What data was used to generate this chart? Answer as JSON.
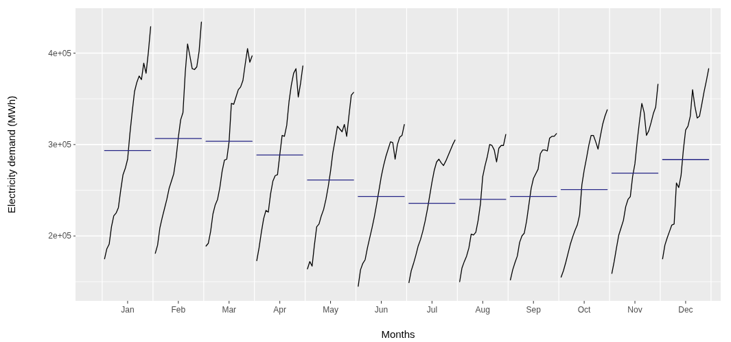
{
  "chart_data": {
    "type": "line",
    "xlabel": "Months",
    "ylabel": "Electricity demand (MWh)",
    "ylim": [
      129000,
      449100
    ],
    "categories": [
      null,
      null,
      null,
      null,
      null,
      null,
      null,
      null,
      null,
      null,
      "Jan",
      null,
      null,
      null,
      null,
      null,
      null,
      null,
      null,
      null,
      null,
      null,
      null,
      null,
      null,
      null,
      null,
      null,
      null,
      null,
      null,
      null,
      "Feb",
      null,
      null,
      null,
      null,
      null,
      null,
      null,
      null,
      null,
      null,
      null,
      null,
      null,
      null,
      null,
      null,
      null,
      null,
      null,
      null,
      null,
      "Mar",
      null,
      null,
      null,
      null,
      null,
      null,
      null,
      null,
      null,
      null,
      null,
      null,
      null,
      null,
      null,
      null,
      null,
      null,
      null,
      null,
      null,
      "Apr",
      null,
      null,
      null,
      null,
      null,
      null,
      null,
      null,
      null,
      null,
      null,
      null,
      null,
      null,
      null,
      null,
      null,
      null,
      null,
      null,
      null,
      "May",
      null,
      null,
      null,
      null,
      null,
      null,
      null,
      null,
      null,
      null,
      null,
      null,
      null,
      null,
      null,
      null,
      null,
      null,
      null,
      null,
      null,
      "Jun",
      null,
      null,
      null,
      null,
      null,
      null,
      null,
      null,
      null,
      null,
      null,
      null,
      null,
      null,
      null,
      null,
      null,
      null,
      null,
      null,
      null,
      "Jul",
      null,
      null,
      null,
      null,
      null,
      null,
      null,
      null,
      null,
      null,
      null,
      null,
      null,
      null,
      null,
      null,
      null,
      null,
      null,
      null,
      null,
      "Aug",
      null,
      null,
      null,
      null,
      null,
      null,
      null,
      null,
      null,
      null,
      null,
      null,
      null,
      null,
      null,
      null,
      null,
      null,
      null,
      null,
      null,
      "Sep",
      null,
      null,
      null,
      null,
      null,
      null,
      null,
      null,
      null,
      null,
      null,
      null,
      null,
      null,
      null,
      null,
      null,
      null,
      null,
      null,
      null,
      "Oct",
      null,
      null,
      null,
      null,
      null,
      null,
      null,
      null,
      null,
      null,
      null,
      null,
      null,
      null,
      null,
      null,
      null,
      null,
      null,
      null,
      null,
      "Nov",
      null,
      null,
      null,
      null,
      null,
      null,
      null,
      null,
      null,
      null,
      null,
      null,
      null,
      null,
      null,
      null,
      null,
      null,
      null,
      null,
      null,
      "Dec",
      null,
      null,
      null,
      null,
      null,
      null,
      null,
      null,
      null,
      null,
      null
    ],
    "yticks": [
      {
        "value": 200000,
        "label": "2e+05"
      },
      {
        "value": 300000,
        "label": "3e+05"
      },
      {
        "value": 400000,
        "label": "4e+05"
      }
    ],
    "grid": true,
    "series": [
      {
        "color": "#000000",
        "values": [
          175000,
          186000,
          191000,
          210000,
          222000,
          225000,
          231000,
          250000,
          267000,
          274000,
          284000,
          312000,
          336000,
          358000,
          368000,
          375000,
          371000,
          389000,
          378000,
          401000,
          429000,
          null,
          181000,
          190000,
          209000,
          220000,
          230000,
          240000,
          252000,
          260000,
          268000,
          285000,
          308000,
          327000,
          335000,
          379000,
          410000,
          397000,
          383000,
          382000,
          385000,
          402000,
          434000,
          null,
          189000,
          192000,
          205000,
          224000,
          234000,
          240000,
          253000,
          271000,
          283000,
          284000,
          303000,
          345000,
          344000,
          352000,
          360000,
          363000,
          370000,
          388000,
          405000,
          390000,
          397000,
          null,
          173000,
          187000,
          204000,
          219000,
          228000,
          226000,
          246000,
          260000,
          266000,
          267000,
          289000,
          310000,
          309000,
          321000,
          347000,
          365000,
          378000,
          383000,
          352000,
          367000,
          386000,
          null,
          164000,
          172000,
          167000,
          190000,
          210000,
          213000,
          222000,
          229000,
          240000,
          254000,
          271000,
          291000,
          305000,
          320000,
          317000,
          314000,
          322000,
          309000,
          332000,
          354000,
          357000,
          null,
          145000,
          163000,
          170000,
          174000,
          187000,
          198000,
          209000,
          221000,
          235000,
          250000,
          265000,
          277000,
          287000,
          295000,
          303000,
          302000,
          284000,
          300000,
          308000,
          310000,
          322000,
          null,
          149000,
          162000,
          170000,
          179000,
          189000,
          196000,
          205000,
          216000,
          229000,
          244000,
          259000,
          272000,
          281000,
          284000,
          280000,
          277000,
          282000,
          288000,
          294000,
          300000,
          305000,
          null,
          150000,
          165000,
          172000,
          178000,
          187000,
          202000,
          201000,
          204000,
          217000,
          235000,
          265000,
          277000,
          287000,
          300000,
          299000,
          294000,
          281000,
          296000,
          299000,
          299000,
          311000,
          null,
          152000,
          163000,
          171000,
          178000,
          193000,
          200000,
          203000,
          216000,
          234000,
          252000,
          263000,
          268000,
          273000,
          290000,
          294000,
          294000,
          293000,
          307000,
          309000,
          309000,
          312000,
          null,
          155000,
          162000,
          171000,
          181000,
          191000,
          199000,
          206000,
          212000,
          223000,
          256000,
          272000,
          285000,
          299000,
          310000,
          310000,
          303000,
          295000,
          309000,
          322000,
          331000,
          338000,
          null,
          159000,
          172000,
          187000,
          201000,
          209000,
          217000,
          232000,
          240000,
          243000,
          265000,
          279000,
          304000,
          326000,
          345000,
          335000,
          310000,
          315000,
          324000,
          334000,
          341000,
          366000,
          null,
          175000,
          190000,
          198000,
          205000,
          212000,
          213000,
          258000,
          253000,
          266000,
          294000,
          316000,
          320000,
          331000,
          360000,
          342000,
          329000,
          331000,
          344000,
          358000,
          370000,
          383000,
          null
        ]
      },
      {
        "color": "#262686",
        "values": [
          293500,
          293500,
          293500,
          293500,
          293500,
          293500,
          293500,
          293500,
          293500,
          293500,
          293500,
          293500,
          293500,
          293500,
          293500,
          293500,
          293500,
          293500,
          293500,
          293500,
          293500,
          null,
          306500,
          306500,
          306500,
          306500,
          306500,
          306500,
          306500,
          306500,
          306500,
          306500,
          306500,
          306500,
          306500,
          306500,
          306500,
          306500,
          306500,
          306500,
          306500,
          306500,
          306500,
          null,
          303500,
          303500,
          303500,
          303500,
          303500,
          303500,
          303500,
          303500,
          303500,
          303500,
          303500,
          303500,
          303500,
          303500,
          303500,
          303500,
          303500,
          303500,
          303500,
          303500,
          303500,
          null,
          288600,
          288600,
          288600,
          288600,
          288600,
          288600,
          288600,
          288600,
          288600,
          288600,
          288600,
          288600,
          288600,
          288600,
          288600,
          288600,
          288600,
          288600,
          288600,
          288600,
          288600,
          null,
          261200,
          261200,
          261200,
          261200,
          261200,
          261200,
          261200,
          261200,
          261200,
          261200,
          261200,
          261200,
          261200,
          261200,
          261200,
          261200,
          261200,
          261200,
          261200,
          261200,
          261200,
          null,
          243200,
          243200,
          243200,
          243200,
          243200,
          243200,
          243200,
          243200,
          243200,
          243200,
          243200,
          243200,
          243200,
          243200,
          243200,
          243200,
          243200,
          243200,
          243200,
          243200,
          243200,
          null,
          235700,
          235700,
          235700,
          235700,
          235700,
          235700,
          235700,
          235700,
          235700,
          235700,
          235700,
          235700,
          235700,
          235700,
          235700,
          235700,
          235700,
          235700,
          235700,
          235700,
          235700,
          null,
          240000,
          240000,
          240000,
          240000,
          240000,
          240000,
          240000,
          240000,
          240000,
          240000,
          240000,
          240000,
          240000,
          240000,
          240000,
          240000,
          240000,
          240000,
          240000,
          240000,
          240000,
          null,
          243200,
          243200,
          243200,
          243200,
          243200,
          243200,
          243200,
          243200,
          243200,
          243200,
          243200,
          243200,
          243200,
          243200,
          243200,
          243200,
          243200,
          243200,
          243200,
          243200,
          243200,
          null,
          250700,
          250700,
          250700,
          250700,
          250700,
          250700,
          250700,
          250700,
          250700,
          250700,
          250700,
          250700,
          250700,
          250700,
          250700,
          250700,
          250700,
          250700,
          250700,
          250700,
          250700,
          null,
          268700,
          268700,
          268700,
          268700,
          268700,
          268700,
          268700,
          268700,
          268700,
          268700,
          268700,
          268700,
          268700,
          268700,
          268700,
          268700,
          268700,
          268700,
          268700,
          268700,
          268700,
          null,
          283600,
          283600,
          283600,
          283600,
          283600,
          283600,
          283600,
          283600,
          283600,
          283600,
          283600,
          283600,
          283600,
          283600,
          283600,
          283600,
          283600,
          283600,
          283600,
          283600,
          283600,
          null
        ]
      }
    ]
  }
}
